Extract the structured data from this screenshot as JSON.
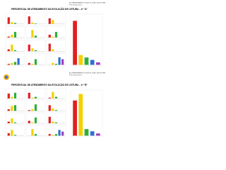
{
  "colors": [
    "#e02020",
    "#f4d000",
    "#2fae3a",
    "#2f6fd0",
    "#a040c0"
  ],
  "ylim": [
    0,
    100
  ],
  "sections": [
    {
      "header": [
        "ACOMPANHAMENTO DA EVOLUÇÃO DA LEITURA",
        "Prof. Responsável"
      ],
      "title": "PERCENTUAL DE ATENDIMENTO DA EVOLUÇÃO DE LEITURA – 4º \"A\"",
      "charts": [
        [
          70,
          20,
          10,
          0,
          0
        ],
        [
          80,
          15,
          5,
          0,
          0
        ],
        [
          60,
          40,
          0,
          0,
          0
        ],
        [
          10,
          30,
          60,
          0,
          0
        ],
        [
          0,
          80,
          20,
          0,
          0
        ],
        [
          30,
          10,
          60,
          0,
          0
        ],
        [
          20,
          70,
          10,
          0,
          0
        ],
        [
          70,
          30,
          10,
          0,
          0
        ],
        [
          80,
          20,
          0,
          0,
          0
        ],
        [
          10,
          20,
          30,
          70,
          0
        ],
        [
          20,
          10,
          60,
          0,
          0
        ],
        [
          0,
          20,
          10,
          80,
          60
        ]
      ],
      "big_chart": [
        90,
        20,
        15,
        10,
        5
      ]
    },
    {
      "header": [
        "ACOMPANHAMENTO DA EVOLUÇÃO DA LEITURA",
        "Prof. Responsável"
      ],
      "title": "PERCENTUAL DE ATENDIMENTO DA EVOLUÇÃO DE LEITURA – 4º \"B\"",
      "charts": [
        [
          60,
          20,
          70,
          0,
          0
        ],
        [
          70,
          10,
          20,
          0,
          0
        ],
        [
          10,
          80,
          20,
          0,
          0
        ],
        [
          20,
          60,
          70,
          0,
          0
        ],
        [
          10,
          20,
          80,
          0,
          0
        ],
        [
          70,
          30,
          10,
          0,
          0
        ],
        [
          20,
          60,
          10,
          0,
          0
        ],
        [
          30,
          10,
          70,
          0,
          0
        ],
        [
          80,
          20,
          10,
          0,
          0
        ],
        [
          30,
          70,
          10,
          0,
          0
        ],
        [
          0,
          80,
          20,
          0,
          0
        ],
        [
          20,
          10,
          20,
          70,
          50
        ]
      ],
      "big_chart": [
        80,
        95,
        15,
        10,
        5
      ]
    }
  ]
}
